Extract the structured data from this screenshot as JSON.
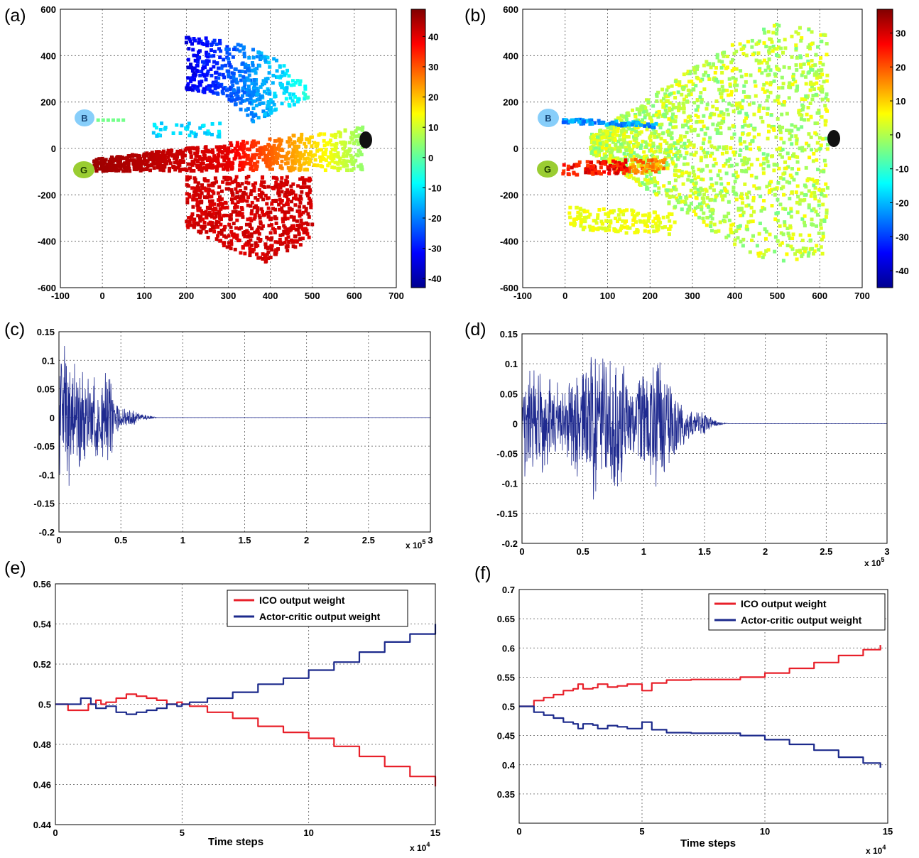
{
  "chart_data": [
    {
      "panel": "(a)",
      "type": "scatter",
      "xlim": [
        -100,
        700
      ],
      "ylim": [
        -600,
        600
      ],
      "x_ticks": [
        -100,
        0,
        100,
        200,
        300,
        400,
        500,
        600,
        700
      ],
      "y_ticks": [
        -600,
        -400,
        -200,
        0,
        200,
        400,
        600
      ],
      "colorbar": {
        "range": [
          -43,
          49
        ],
        "ticks": [
          -40,
          -30,
          -20,
          -10,
          0,
          10,
          20,
          30,
          40
        ]
      },
      "markers": [
        {
          "label": "B",
          "x": -40,
          "y": 125,
          "color": "#87cefa"
        },
        {
          "label": "G",
          "x": -45,
          "y": -95,
          "color": "#9acd32"
        },
        {
          "label": "",
          "x": 625,
          "y": 35,
          "color": "#111111"
        }
      ],
      "grid": true,
      "description_regions": [
        {
          "x": [
            0,
            620
          ],
          "y": [
            -100,
            100
          ],
          "value": "warm gradient, red near G, yellow near x=550"
        },
        {
          "x": [
            200,
            500
          ],
          "y": [
            -480,
            -100
          ],
          "value": 40
        },
        {
          "x": [
            150,
            500
          ],
          "y": [
            150,
            540
          ],
          "value": -20
        }
      ]
    },
    {
      "panel": "(b)",
      "type": "scatter",
      "xlim": [
        -100,
        700
      ],
      "ylim": [
        -600,
        600
      ],
      "x_ticks": [
        -100,
        0,
        100,
        200,
        300,
        400,
        500,
        600,
        700
      ],
      "y_ticks": [
        -600,
        -400,
        -200,
        0,
        200,
        400,
        600
      ],
      "colorbar": {
        "range": [
          -45,
          37
        ],
        "ticks": [
          -40,
          -30,
          -20,
          -10,
          0,
          10,
          20,
          30
        ]
      },
      "markers": [
        {
          "label": "B",
          "x": -40,
          "y": 125,
          "color": "#87cefa"
        },
        {
          "label": "G",
          "x": -45,
          "y": -95,
          "color": "#9acd32"
        },
        {
          "label": "",
          "x": 630,
          "y": 35,
          "color": "#111111"
        }
      ],
      "grid": true
    },
    {
      "panel": "(c)",
      "type": "line",
      "xlim": [
        0,
        3
      ],
      "ylim": [
        -0.2,
        0.15
      ],
      "x_ticks": [
        "0",
        "0.5",
        "1",
        "1.5",
        "2",
        "2.5",
        "3"
      ],
      "y_ticks": [
        "-0.2",
        "-0.15",
        "-0.1",
        "-0.05",
        "0",
        "0.05",
        "0.1",
        "0.15"
      ],
      "x_multiplier": "x 10^5",
      "series": [
        {
          "color": "#1f2a8f",
          "envelope": [
            [
              0,
              0.14
            ],
            [
              0.1,
              0.12
            ],
            [
              0.2,
              0.09
            ],
            [
              0.3,
              0.07
            ],
            [
              0.4,
              0.11
            ],
            [
              0.45,
              0.03
            ],
            [
              0.55,
              0.02
            ],
            [
              0.7,
              0.005
            ],
            [
              0.8,
              0
            ],
            [
              3,
              0
            ]
          ]
        }
      ],
      "grid": true
    },
    {
      "panel": "(d)",
      "type": "line",
      "xlim": [
        0,
        3
      ],
      "ylim": [
        -0.2,
        0.15
      ],
      "x_ticks": [
        "0",
        "0.5",
        "1",
        "1.5",
        "2",
        "2.5",
        "3"
      ],
      "y_ticks": [
        "-0.2",
        "-0.15",
        "-0.1",
        "-0.05",
        "0",
        "0.05",
        "0.1",
        "0.15"
      ],
      "x_multiplier": "x 10^5",
      "series": [
        {
          "color": "#1f2a8f",
          "envelope": [
            [
              0,
              0.1
            ],
            [
              0.2,
              0.09
            ],
            [
              0.35,
              0.06
            ],
            [
              0.45,
              0.1
            ],
            [
              0.6,
              0.13
            ],
            [
              0.75,
              0.13
            ],
            [
              0.8,
              0.12
            ],
            [
              0.9,
              0.06
            ],
            [
              1.0,
              0.1
            ],
            [
              1.15,
              0.12
            ],
            [
              1.25,
              0.07
            ],
            [
              1.35,
              0.03
            ],
            [
              1.5,
              0.02
            ],
            [
              1.6,
              0.004
            ],
            [
              1.7,
              0
            ],
            [
              3,
              0
            ]
          ]
        }
      ],
      "grid": true
    },
    {
      "panel": "(e)",
      "type": "line",
      "xlim": [
        0,
        15
      ],
      "ylim": [
        0.44,
        0.56
      ],
      "x_ticks": [
        "0",
        "5",
        "10",
        "15"
      ],
      "y_ticks": [
        "0.44",
        "0.46",
        "0.48",
        "0.5",
        "0.52",
        "0.54",
        "0.56"
      ],
      "x_multiplier": "x 10^4",
      "xlabel": "Time steps",
      "legend": "top-right",
      "series": [
        {
          "name": "ICO output weight",
          "color": "#e8202a",
          "x": [
            0,
            0.4,
            0.5,
            1.2,
            1.3,
            1.6,
            1.8,
            2.0,
            2.4,
            2.8,
            3.2,
            3.6,
            4.0,
            4.4,
            4.8,
            5.0,
            5.3,
            6.0,
            7.0,
            8.0,
            9.0,
            10.0,
            11.0,
            12.0,
            13.0,
            14.0,
            15.0
          ],
          "y": [
            0.5,
            0.5,
            0.497,
            0.497,
            0.5,
            0.502,
            0.5,
            0.501,
            0.503,
            0.505,
            0.504,
            0.503,
            0.502,
            0.5,
            0.501,
            0.5,
            0.499,
            0.496,
            0.493,
            0.489,
            0.486,
            0.483,
            0.479,
            0.474,
            0.469,
            0.464,
            0.459
          ]
        },
        {
          "name": "Actor-critic output weight",
          "color": "#1c2a8c",
          "x": [
            0,
            0.7,
            1.0,
            1.2,
            1.4,
            1.6,
            2.0,
            2.4,
            2.8,
            3.2,
            3.6,
            4.0,
            4.4,
            4.8,
            5.0,
            5.3,
            6.0,
            7.0,
            8.0,
            9.0,
            10.0,
            11.0,
            12.0,
            13.0,
            14.0,
            15.0
          ],
          "y": [
            0.5,
            0.5,
            0.503,
            0.503,
            0.5,
            0.498,
            0.499,
            0.496,
            0.495,
            0.496,
            0.497,
            0.498,
            0.5,
            0.499,
            0.5,
            0.501,
            0.503,
            0.506,
            0.51,
            0.513,
            0.517,
            0.521,
            0.526,
            0.531,
            0.535,
            0.54
          ]
        }
      ],
      "grid": true
    },
    {
      "panel": "(f)",
      "type": "line",
      "xlim": [
        0,
        15
      ],
      "ylim": [
        0.3,
        0.7
      ],
      "x_ticks": [
        "0",
        "5",
        "10",
        "15"
      ],
      "y_ticks": [
        "0.35",
        "0.4",
        "0.45",
        "0.5",
        "0.55",
        "0.6",
        "0.65",
        "0.7"
      ],
      "x_multiplier": "x 10^4",
      "xlabel": "Time steps",
      "legend": "top-right",
      "series": [
        {
          "name": "ICO output weight",
          "color": "#e8202a",
          "x": [
            0,
            0.4,
            0.6,
            1.0,
            1.4,
            1.8,
            2.2,
            2.4,
            2.6,
            3.0,
            3.2,
            3.6,
            4.0,
            4.4,
            4.8,
            5.0,
            5.2,
            5.4,
            6.0,
            7.0,
            8.0,
            9.0,
            10.0,
            11.0,
            12.0,
            13.0,
            14.0,
            14.7
          ],
          "y": [
            0.5,
            0.5,
            0.51,
            0.515,
            0.52,
            0.527,
            0.53,
            0.538,
            0.53,
            0.532,
            0.538,
            0.533,
            0.535,
            0.538,
            0.538,
            0.527,
            0.527,
            0.54,
            0.545,
            0.546,
            0.546,
            0.55,
            0.557,
            0.565,
            0.575,
            0.587,
            0.597,
            0.605
          ]
        },
        {
          "name": "Actor-critic output weight",
          "color": "#1c2a8c",
          "x": [
            0,
            0.4,
            0.6,
            1.0,
            1.4,
            1.8,
            2.2,
            2.4,
            2.6,
            3.0,
            3.2,
            3.6,
            4.0,
            4.4,
            4.8,
            5.0,
            5.2,
            5.4,
            6.0,
            7.0,
            8.0,
            9.0,
            10.0,
            11.0,
            12.0,
            13.0,
            14.0,
            14.7
          ],
          "y": [
            0.5,
            0.5,
            0.49,
            0.485,
            0.48,
            0.473,
            0.47,
            0.462,
            0.47,
            0.468,
            0.462,
            0.467,
            0.465,
            0.462,
            0.462,
            0.473,
            0.473,
            0.46,
            0.455,
            0.454,
            0.454,
            0.45,
            0.443,
            0.435,
            0.425,
            0.413,
            0.403,
            0.395
          ]
        }
      ],
      "grid": true
    }
  ],
  "text": {
    "panel_a": "(a)",
    "panel_b": "(b)",
    "panel_c": "(c)",
    "panel_d": "(d)",
    "panel_e": "(e)",
    "panel_f": "(f)",
    "marker_b": "B",
    "marker_g": "G",
    "time_steps": "Time steps",
    "mult_base": "x 10",
    "exp5": "5",
    "exp4": "4",
    "legend_ico": "ICO output weight",
    "legend_ac": "Actor-critic output weight"
  }
}
